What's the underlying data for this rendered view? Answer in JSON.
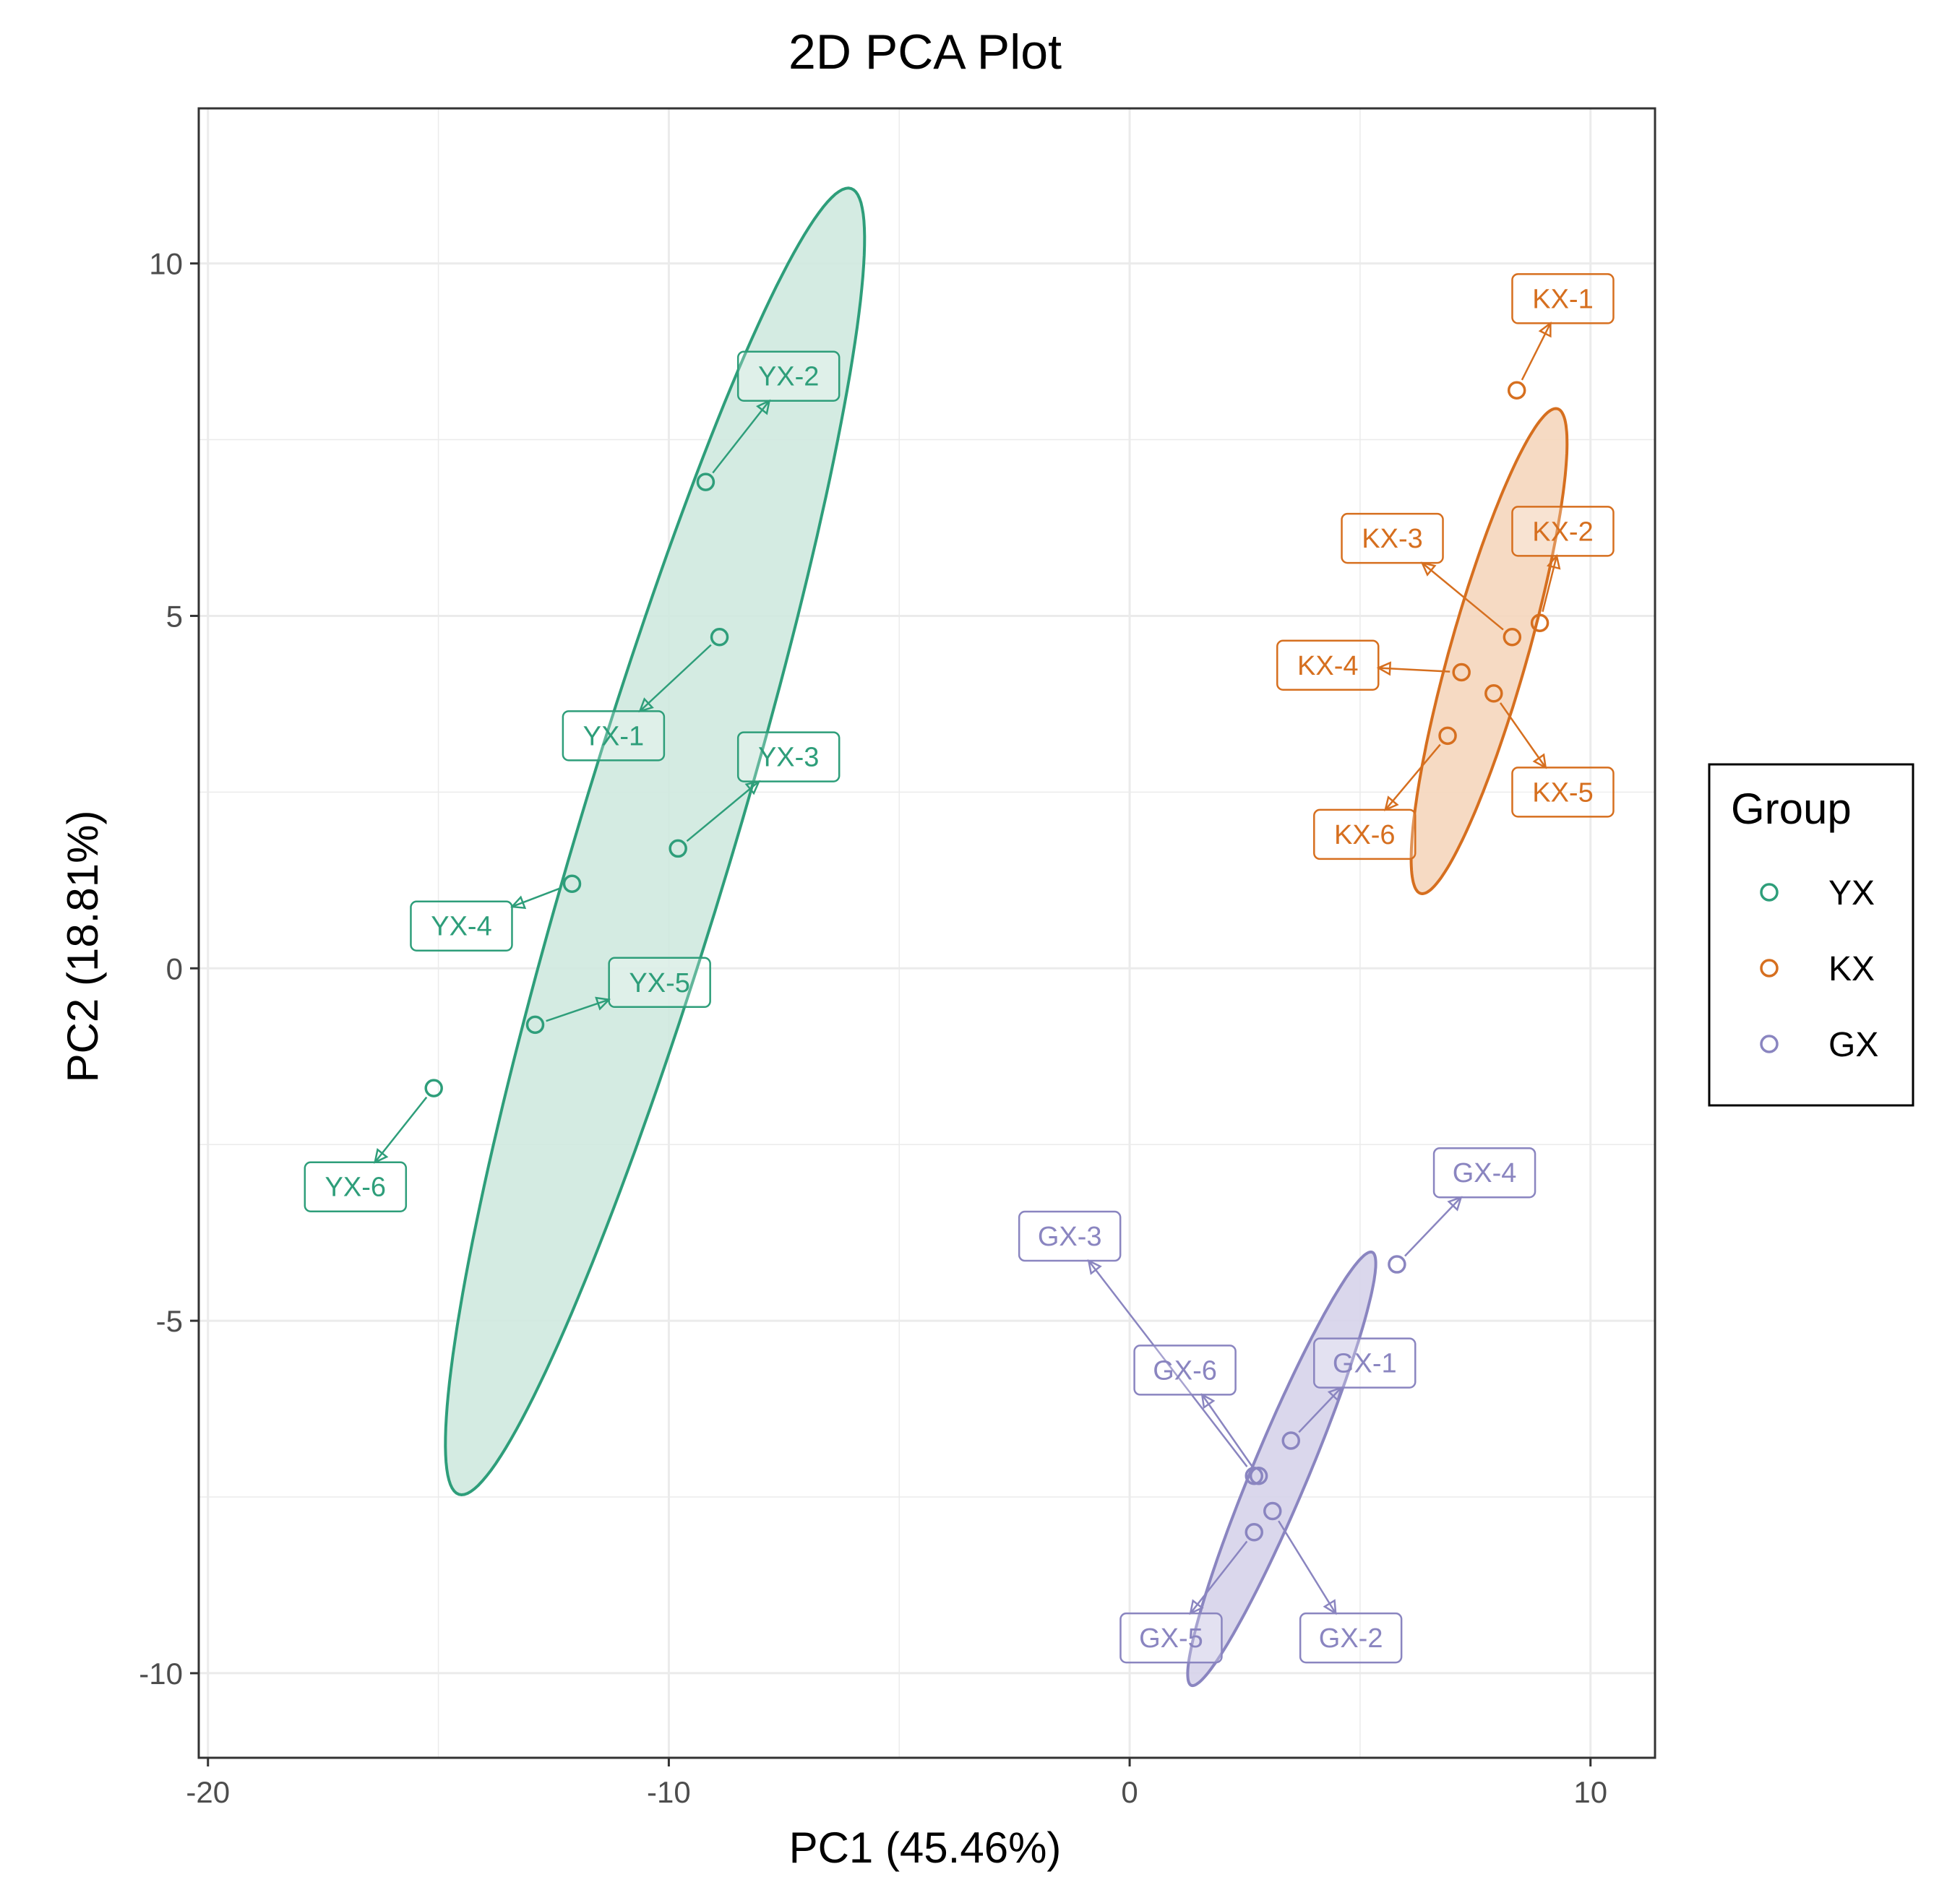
{
  "chart_data": {
    "type": "scatter",
    "title": "2D PCA Plot",
    "xlabel": "PC1 (45.46%)",
    "ylabel": "PC2 (18.81%)",
    "xlim": [
      -20.2,
      11.4
    ],
    "ylim": [
      -11.2,
      12.2
    ],
    "x_ticks": [
      -20,
      -10,
      0,
      10
    ],
    "x_tick_labels": [
      "-20",
      "-10",
      "0",
      "10"
    ],
    "y_ticks": [
      -10,
      -5,
      0,
      5,
      10
    ],
    "y_tick_labels": [
      "-10",
      "-5",
      "0",
      "5",
      "10"
    ],
    "grid": true,
    "legend": {
      "title": "Group",
      "position": "right",
      "entries": [
        "YX",
        "KX",
        "GX"
      ]
    },
    "series": [
      {
        "name": "YX",
        "color": "#2e9e7a",
        "fill": "#cfe9df",
        "ellipse": {
          "center": [
            -10.3,
            1.8
          ],
          "rx": 10.2,
          "ry": 1.6,
          "angle_deg": 65
        },
        "points": [
          {
            "label": "YX-1",
            "x": -8.9,
            "y": 4.7,
            "label_x": -11.2,
            "label_y": 3.3
          },
          {
            "label": "YX-2",
            "x": -9.2,
            "y": 6.9,
            "label_x": -7.4,
            "label_y": 8.4
          },
          {
            "label": "YX-3",
            "x": -9.8,
            "y": 1.7,
            "label_x": -7.4,
            "label_y": 3.0
          },
          {
            "label": "YX-4",
            "x": -12.1,
            "y": 1.2,
            "label_x": -14.5,
            "label_y": 0.6
          },
          {
            "label": "YX-5",
            "x": -12.9,
            "y": -0.8,
            "label_x": -10.2,
            "label_y": -0.2
          },
          {
            "label": "YX-6",
            "x": -15.1,
            "y": -1.7,
            "label_x": -16.8,
            "label_y": -3.1
          }
        ]
      },
      {
        "name": "KX",
        "color": "#d66f1f",
        "fill": "#f5d6bc",
        "ellipse": {
          "center": [
            7.8,
            4.5
          ],
          "rx": 3.75,
          "ry": 0.8,
          "angle_deg": 66
        },
        "points": [
          {
            "label": "KX-1",
            "x": 8.4,
            "y": 8.2,
            "label_x": 9.4,
            "label_y": 9.5
          },
          {
            "label": "KX-2",
            "x": 8.9,
            "y": 4.9,
            "label_x": 9.4,
            "label_y": 6.2
          },
          {
            "label": "KX-3",
            "x": 8.3,
            "y": 4.7,
            "label_x": 5.7,
            "label_y": 6.1
          },
          {
            "label": "KX-4",
            "x": 7.2,
            "y": 4.2,
            "label_x": 4.3,
            "label_y": 4.3
          },
          {
            "label": "KX-5",
            "x": 7.9,
            "y": 3.9,
            "label_x": 9.4,
            "label_y": 2.5
          },
          {
            "label": "KX-6",
            "x": 6.9,
            "y": 3.3,
            "label_x": 5.1,
            "label_y": 1.9
          }
        ]
      },
      {
        "name": "GX",
        "color": "#8a85c0",
        "fill": "#d6d3ea",
        "ellipse": {
          "center": [
            3.3,
            -7.1
          ],
          "rx": 3.65,
          "ry": 0.55,
          "angle_deg": 57
        },
        "points": [
          {
            "label": "GX-1",
            "x": 3.5,
            "y": -6.7,
            "label_x": 5.1,
            "label_y": -5.6
          },
          {
            "label": "GX-2",
            "x": 3.1,
            "y": -7.7,
            "label_x": 4.8,
            "label_y": -9.5
          },
          {
            "label": "GX-3",
            "x": 2.7,
            "y": -7.2,
            "label_x": -1.3,
            "label_y": -3.8
          },
          {
            "label": "GX-4",
            "x": 5.8,
            "y": -4.2,
            "label_x": 7.7,
            "label_y": -2.9
          },
          {
            "label": "GX-5",
            "x": 2.7,
            "y": -8.0,
            "label_x": 0.9,
            "label_y": -9.5
          },
          {
            "label": "GX-6",
            "x": 2.8,
            "y": -7.2,
            "label_x": 1.2,
            "label_y": -5.7
          }
        ]
      }
    ]
  }
}
